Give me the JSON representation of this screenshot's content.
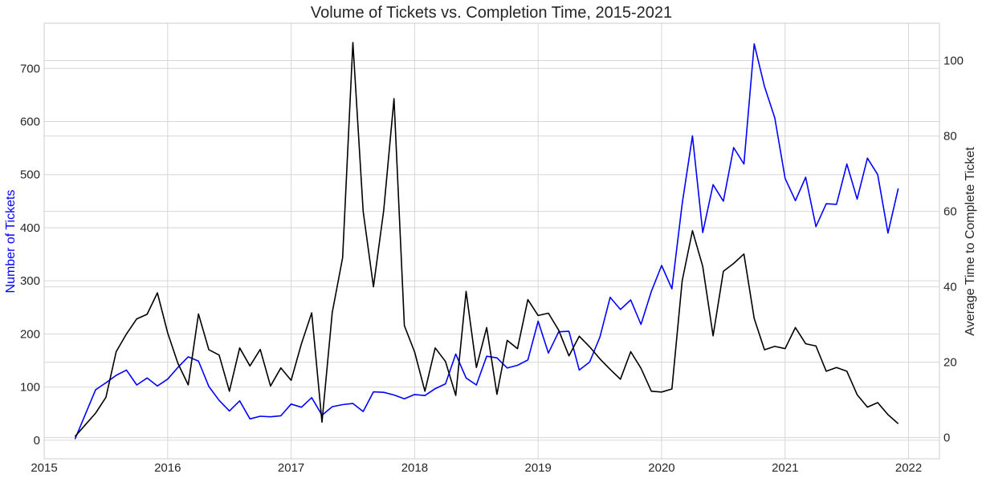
{
  "chart_data": {
    "type": "line",
    "title": "Volume of Tickets vs. Completion Time, 2015-2021",
    "xlabel": "",
    "ylabel": "Number of Tickets",
    "ylabel_right": "Average Time to Complete Ticket",
    "xlim": [
      2015.0,
      2022.25
    ],
    "ylim": [
      -35,
      785
    ],
    "ylim_right": [
      -5.6,
      109.9
    ],
    "x_ticks": [
      2015,
      2016,
      2017,
      2018,
      2019,
      2020,
      2021,
      2022
    ],
    "y_ticks": [
      0,
      100,
      200,
      300,
      400,
      500,
      600,
      700
    ],
    "y_ticks_right": [
      0,
      20,
      40,
      60,
      80,
      100
    ],
    "grid": true,
    "colors": {
      "tickets": "#0000ff",
      "completion": "#000000"
    },
    "series": [
      {
        "name": "Number of Tickets",
        "axis": "left",
        "color": "#0000ff",
        "x": [
          2015.25,
          2015.4167,
          2015.5,
          2015.5833,
          2015.6667,
          2015.75,
          2015.8333,
          2015.9167,
          2016.0,
          2016.0833,
          2016.1667,
          2016.25,
          2016.3333,
          2016.4167,
          2016.5,
          2016.5833,
          2016.6667,
          2016.75,
          2016.8333,
          2016.9167,
          2017.0,
          2017.0833,
          2017.1667,
          2017.25,
          2017.3333,
          2017.4167,
          2017.5,
          2017.5833,
          2017.6667,
          2017.75,
          2017.8333,
          2017.9167,
          2018.0,
          2018.0833,
          2018.1667,
          2018.25,
          2018.3333,
          2018.4167,
          2018.5,
          2018.5833,
          2018.6667,
          2018.75,
          2018.8333,
          2018.9167,
          2019.0,
          2019.0833,
          2019.1667,
          2019.25,
          2019.3333,
          2019.4167,
          2019.5,
          2019.5833,
          2019.6667,
          2019.75,
          2019.8333,
          2019.9167,
          2020.0,
          2020.0833,
          2020.1667,
          2020.25,
          2020.3333,
          2020.4167,
          2020.5,
          2020.5833,
          2020.6667,
          2020.75,
          2020.8333,
          2020.9167,
          2021.0,
          2021.0833,
          2021.1667,
          2021.25,
          2021.3333,
          2021.4167,
          2021.5,
          2021.5833,
          2021.6667,
          2021.75,
          2021.8333,
          2021.9167
        ],
        "y": [
          2,
          95,
          108,
          122,
          132,
          104,
          117,
          102,
          115,
          137,
          157,
          149,
          101,
          75,
          55,
          74,
          40,
          45,
          44,
          46,
          68,
          62,
          80,
          47,
          63,
          67,
          69,
          54,
          91,
          90,
          85,
          78,
          86,
          84,
          97,
          106,
          162,
          117,
          104,
          158,
          155,
          136,
          141,
          151,
          224,
          164,
          204,
          205,
          132,
          147,
          194,
          269,
          246,
          264,
          218,
          280,
          329,
          285,
          445,
          573,
          391,
          481,
          450,
          551,
          520,
          746,
          666,
          607,
          493,
          451,
          495,
          402,
          445,
          444,
          520,
          454,
          531,
          500,
          390,
          474
        ]
      },
      {
        "name": "Average Time to Complete Ticket",
        "axis": "right",
        "color": "#000000",
        "x": [
          2015.25,
          2015.4167,
          2015.5,
          2015.5833,
          2015.6667,
          2015.75,
          2015.8333,
          2015.9167,
          2016.0,
          2016.0833,
          2016.1667,
          2016.25,
          2016.3333,
          2016.4167,
          2016.5,
          2016.5833,
          2016.6667,
          2016.75,
          2016.8333,
          2016.9167,
          2017.0,
          2017.0833,
          2017.1667,
          2017.25,
          2017.3333,
          2017.4167,
          2017.5,
          2017.5833,
          2017.6667,
          2017.75,
          2017.8333,
          2017.9167,
          2018.0,
          2018.0833,
          2018.1667,
          2018.25,
          2018.3333,
          2018.4167,
          2018.5,
          2018.5833,
          2018.6667,
          2018.75,
          2018.8333,
          2018.9167,
          2019.0,
          2019.0833,
          2019.1667,
          2019.25,
          2019.3333,
          2019.4167,
          2019.5,
          2019.5833,
          2019.6667,
          2019.75,
          2019.8333,
          2019.9167,
          2020.0,
          2020.0833,
          2020.1667,
          2020.25,
          2020.3333,
          2020.4167,
          2020.5,
          2020.5833,
          2020.6667,
          2020.75,
          2020.8333,
          2020.9167,
          2021.0,
          2021.0833,
          2021.1667,
          2021.25,
          2021.3333,
          2021.4167,
          2021.5,
          2021.5833,
          2021.6667,
          2021.75,
          2021.8333,
          2021.9167
        ],
        "y": [
          0.3,
          6.5,
          10.7,
          22.8,
          27.5,
          31.5,
          32.7,
          38.4,
          27.8,
          19.7,
          14.0,
          32.8,
          23.3,
          21.9,
          12.3,
          23.8,
          19.0,
          23.4,
          13.7,
          18.5,
          15.2,
          24.9,
          33.1,
          4.1,
          33.2,
          47.7,
          104.8,
          60.0,
          40.0,
          60.3,
          89.9,
          29.7,
          22.7,
          12.3,
          23.8,
          20.2,
          11.2,
          38.8,
          18.6,
          29.2,
          11.5,
          25.8,
          23.6,
          36.6,
          32.4,
          33.0,
          28.5,
          21.7,
          26.9,
          24.1,
          20.9,
          18.1,
          15.5,
          22.8,
          18.4,
          12.3,
          12.1,
          12.9,
          41.6,
          54.9,
          45.4,
          27.0,
          44.1,
          46.2,
          48.7,
          31.6,
          23.3,
          24.2,
          23.6,
          29.2,
          24.9,
          24.3,
          17.6,
          18.6,
          17.6,
          11.4,
          8.1,
          9.3,
          6.1,
          3.7
        ]
      }
    ]
  }
}
